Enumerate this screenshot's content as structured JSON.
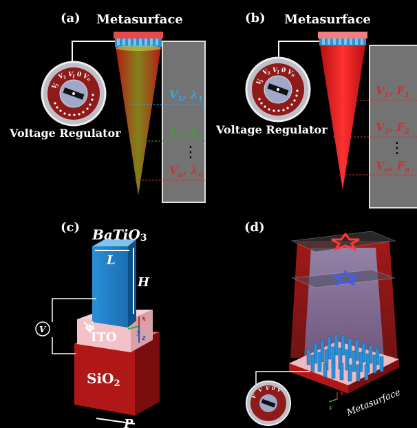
{
  "panels": {
    "a": {
      "label": "(a)",
      "title": "Metasurface",
      "regulator_label": "Voltage Regulator",
      "dial": [
        "V",
        "V",
        "V",
        "0",
        "V"
      ],
      "dial_subs": [
        "3",
        "2",
        "1",
        "",
        "n"
      ],
      "entries": [
        {
          "v": "V",
          "vsub": "1",
          "sep": ", ",
          "p": "λ",
          "psub": "1",
          "color": "#3aa6e6"
        },
        {
          "v": "V",
          "vsub": "2",
          "sep": ", ",
          "p": "λ",
          "psub": "2",
          "color": "#3f9f3a"
        },
        {
          "v": "V",
          "vsub": "n",
          "sep": ", ",
          "p": "λ",
          "psub": "n",
          "color": "#c83232"
        }
      ],
      "ellipsis": "⋮"
    },
    "b": {
      "label": "(b)",
      "title": "Metasurface",
      "regulator_label": "Voltage Regulator",
      "dial": [
        "V",
        "V",
        "V",
        "0",
        "V"
      ],
      "dial_subs": [
        "3",
        "2",
        "1",
        "",
        "n"
      ],
      "entries": [
        {
          "v": "V",
          "vsub": "1",
          "sep": ", ",
          "p": "F",
          "psub": "1",
          "color": "#c83232"
        },
        {
          "v": "V",
          "vsub": "2",
          "sep": ", ",
          "p": "F",
          "psub": "2",
          "color": "#c83232"
        },
        {
          "v": "V",
          "vsub": "n",
          "sep": ", ",
          "p": "F",
          "psub": "n",
          "color": "#c83232"
        }
      ],
      "ellipsis": "⋮"
    },
    "c": {
      "label": "(c)",
      "top_material": "BaTiO",
      "top_sub": "3",
      "dim_L": "L",
      "dim_H": "H",
      "dim_W": "W",
      "dim_P": "P",
      "ito": "ITO",
      "sio2": "SiO",
      "sio2_sub": "2",
      "source": "V",
      "axis_x": "x",
      "axis_y": "y",
      "axis_z": "z"
    },
    "d": {
      "label": "(d)",
      "metasurface_label": "Metasurface",
      "axis_x": "x",
      "axis_y": "y"
    }
  }
}
